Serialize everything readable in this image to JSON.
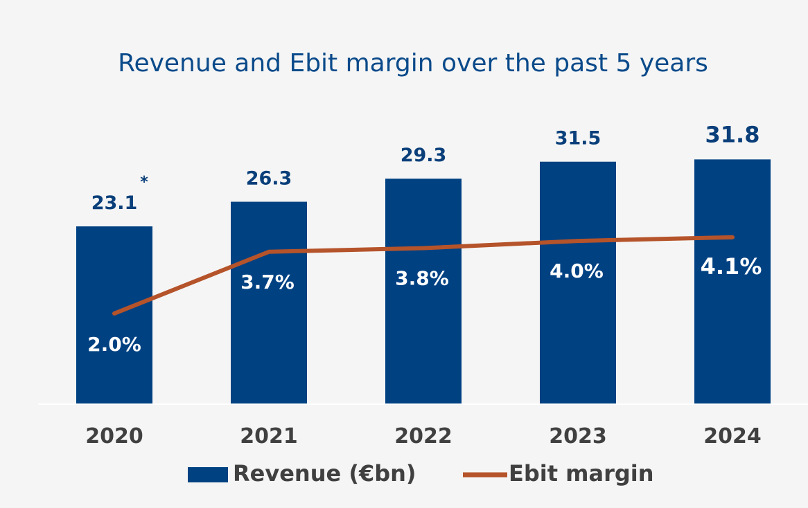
{
  "colors": {
    "background": "#f5f5f5",
    "bar": "#004182",
    "line": "#b5532a",
    "title": "#0a4a8a",
    "value_label": "#0a3f7a",
    "margin_label": "#ffffff",
    "axis_label": "#404040",
    "baseline": "#ffffff"
  },
  "chart_data": {
    "type": "bar",
    "title": "Revenue and Ebit margin over the past 5 years",
    "categories": [
      "2020",
      "2021",
      "2022",
      "2023",
      "2024"
    ],
    "series": [
      {
        "name": "Revenue (€bn)",
        "type": "bar",
        "values": [
          23.1,
          26.3,
          29.3,
          31.5,
          31.8
        ],
        "labels": [
          "23.1",
          "26.3",
          "29.3",
          "31.5",
          "31.8"
        ]
      },
      {
        "name": "Ebit margin",
        "type": "line",
        "values": [
          2.0,
          3.7,
          3.8,
          4.0,
          4.1
        ],
        "labels": [
          "2.0%",
          "3.7%",
          "3.8%",
          "4.0%",
          "4.1%"
        ]
      }
    ],
    "annotations": [
      {
        "category": "2020",
        "text": "*"
      }
    ],
    "ylim": [
      0,
      33
    ],
    "y2lim": [
      -0.5,
      6.5
    ],
    "grid": false,
    "legend_position": "bottom"
  }
}
